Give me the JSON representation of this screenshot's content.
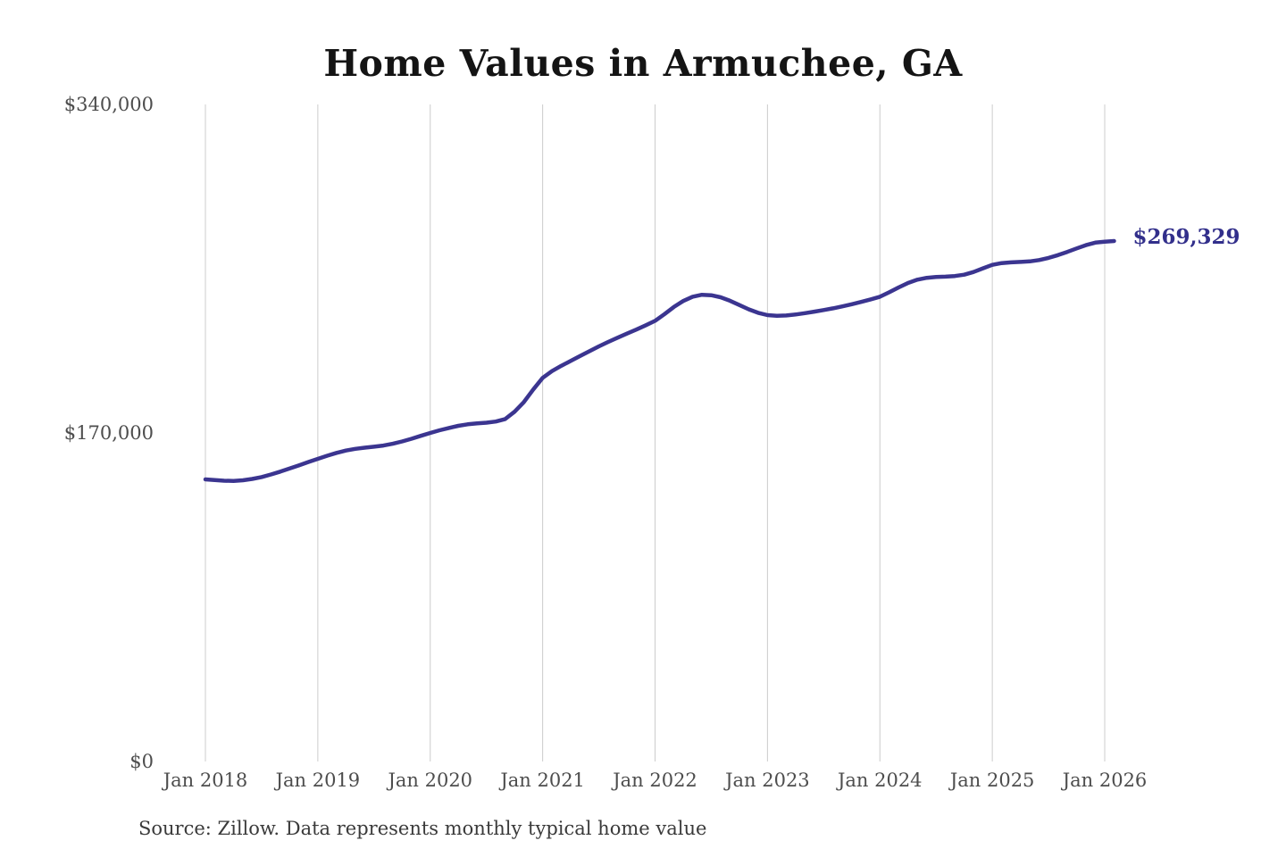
{
  "source_note": "Source: Zillow. Data represents monthly typical home value",
  "colors": {
    "line": "#3b3590",
    "annotation": "#322f8b",
    "gridline": "#cccccc",
    "axis_text": "#4d4d4d",
    "title_text": "#141414",
    "source_text": "#3a3a3a",
    "background": "#ffffff"
  },
  "chart_data": {
    "type": "line",
    "title": "Home Values in Armuchee, GA",
    "xlabel": "",
    "ylabel": "",
    "ylim": [
      0,
      340000
    ],
    "grid": "vertical-gridlines-only",
    "legend": "none",
    "x_ticks": [
      "Jan 2018",
      "Jan 2019",
      "Jan 2020",
      "Jan 2021",
      "Jan 2022",
      "Jan 2023",
      "Jan 2024",
      "Jan 2025",
      "Jan 2026"
    ],
    "y_ticks": [
      {
        "value": 0,
        "label": "$0"
      },
      {
        "value": 170000,
        "label": "$170,000"
      },
      {
        "value": 340000,
        "label": "$340,000"
      }
    ],
    "series": [
      {
        "name": "Monthly typical home value",
        "color": "#3b3590",
        "start": "Jan 2018",
        "frequency": "monthly",
        "values": [
          146000,
          145600,
          145300,
          145200,
          145500,
          146200,
          147200,
          148500,
          150000,
          151600,
          153300,
          155000,
          156600,
          158200,
          159700,
          160900,
          161800,
          162400,
          162900,
          163500,
          164400,
          165600,
          167000,
          168500,
          170000,
          171400,
          172600,
          173700,
          174500,
          175000,
          175300,
          175900,
          177200,
          181000,
          186000,
          192500,
          198500,
          202000,
          204800,
          207300,
          209800,
          212300,
          214800,
          217100,
          219300,
          221400,
          223500,
          225700,
          228000,
          231500,
          235200,
          238300,
          240500,
          241500,
          241300,
          240200,
          238400,
          236200,
          234000,
          232200,
          231000,
          230600,
          230800,
          231300,
          232000,
          232800,
          233600,
          234500,
          235500,
          236600,
          237800,
          239100,
          240500,
          242800,
          245300,
          247600,
          249300,
          250300,
          250700,
          250900,
          251200,
          251900,
          253300,
          255200,
          257000,
          257900,
          258300,
          258500,
          258800,
          259500,
          260600,
          262000,
          263700,
          265500,
          267200,
          268500,
          269000,
          269329
        ]
      }
    ],
    "end_label": {
      "text": "$269,329",
      "value": 269329,
      "color": "#322f8b"
    }
  }
}
